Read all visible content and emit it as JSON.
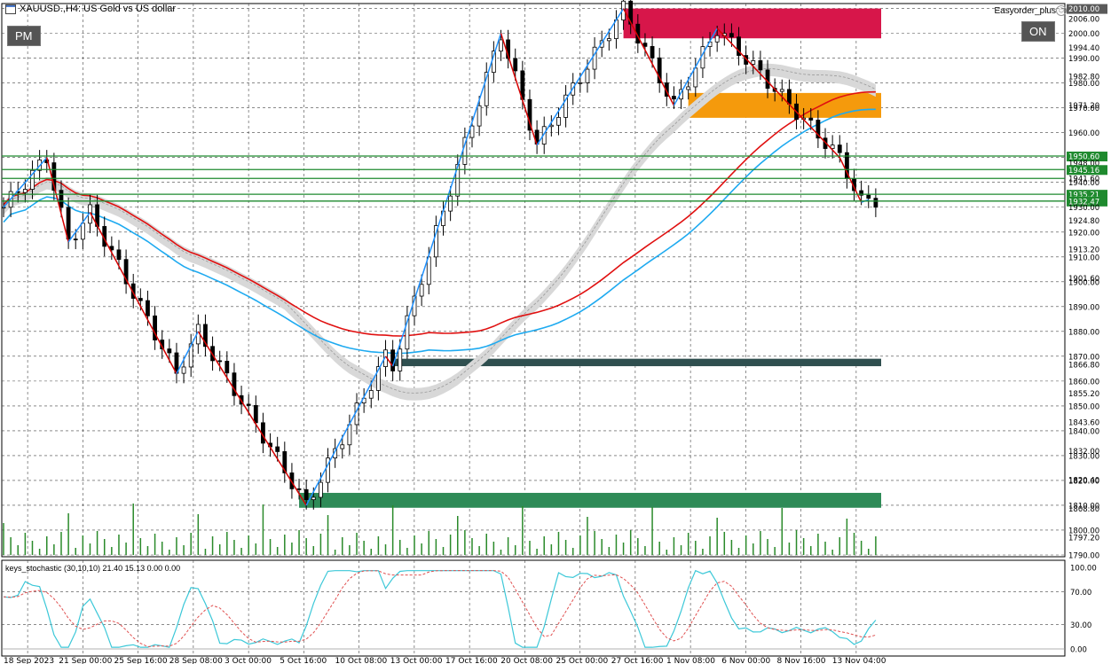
{
  "title": {
    "text": "XAUUSD.,H4:  US Gold vs US dollar"
  },
  "buttons": {
    "pm": "PM",
    "on": "ON"
  },
  "expert": {
    "name": "Easyorder_plus"
  },
  "indicator": {
    "label": "keys_stochastic (30,10,10) 21.40 15.13 0.00 0.00",
    "axis": [
      "100.00",
      "70.00",
      "30.00",
      "0.00"
    ]
  },
  "price_axis": [
    {
      "v": 2010.0,
      "t": "2010.00",
      "hl": "#5a5a5a"
    },
    {
      "v": 2006.0,
      "t": "2006.00"
    },
    {
      "v": 2000.0,
      "t": "2000.00"
    },
    {
      "v": 1994.4,
      "t": "1994.40"
    },
    {
      "v": 1990.0,
      "t": "1990.00"
    },
    {
      "v": 1982.8,
      "t": "1982.80"
    },
    {
      "v": 1980.0,
      "t": "1980.00"
    },
    {
      "v": 1971.2,
      "t": "1971.20"
    },
    {
      "v": 1970.0,
      "t": "1970.00"
    },
    {
      "v": 1960.0,
      "t": "1960.00"
    },
    {
      "v": 1950.6,
      "t": "1950.60",
      "hl": "#1e8a2e"
    },
    {
      "v": 1948.0,
      "t": "1948.00"
    },
    {
      "v": 1945.16,
      "t": "1945.16",
      "hl": "#1e8a2e"
    },
    {
      "v": 1941.6,
      "t": "1941.60"
    },
    {
      "v": 1940.0,
      "t": "1940.00"
    },
    {
      "v": 1935.21,
      "t": "1935.21",
      "hl": "#1e8a2e"
    },
    {
      "v": 1932.47,
      "t": "1932.47",
      "hl": "#1e8a2e"
    },
    {
      "v": 1930.0,
      "t": "1930.00"
    },
    {
      "v": 1924.8,
      "t": "1924.80"
    },
    {
      "v": 1920.0,
      "t": "1920.00"
    },
    {
      "v": 1913.2,
      "t": "1913.20"
    },
    {
      "v": 1910.0,
      "t": "1910.00"
    },
    {
      "v": 1901.6,
      "t": "1901.60"
    },
    {
      "v": 1900.0,
      "t": "1900.00"
    },
    {
      "v": 1890.0,
      "t": "1890.00"
    },
    {
      "v": 1880.0,
      "t": "1880.00"
    },
    {
      "v": 1870.0,
      "t": "1870.00"
    },
    {
      "v": 1866.8,
      "t": "1866.80"
    },
    {
      "v": 1860.0,
      "t": "1860.00"
    },
    {
      "v": 1855.2,
      "t": "1855.20"
    },
    {
      "v": 1850.0,
      "t": "1850.00"
    },
    {
      "v": 1843.6,
      "t": "1843.60"
    },
    {
      "v": 1840.0,
      "t": "1840.00"
    },
    {
      "v": 1832.0,
      "t": "1832.00"
    },
    {
      "v": 1830.0,
      "t": "1830.00"
    },
    {
      "v": 1820.0,
      "t": "1820.00"
    },
    {
      "v": 1820.4,
      "t": "1820.40"
    },
    {
      "v": 1810.0,
      "t": "1810.00"
    },
    {
      "v": 1808.8,
      "t": "1808.80"
    },
    {
      "v": 1800.0,
      "t": "1800.00"
    },
    {
      "v": 1797.2,
      "t": "1797.20"
    },
    {
      "v": 1790.0,
      "t": "1790.00"
    }
  ],
  "time_axis": [
    "18 Sep 2023",
    "21 Sep 00:00",
    "25 Sep 16:00",
    "28 Sep 08:00",
    "3 Oct 00:00",
    "5 Oct 16:00",
    "10 Oct 08:00",
    "13 Oct 00:00",
    "17 Oct 16:00",
    "20 Oct 08:00",
    "25 Oct 00:00",
    "27 Oct 16:00",
    "1 Nov 08:00",
    "6 Nov 00:00",
    "8 Nov 16:00",
    "13 Nov 04:00"
  ],
  "colors": {
    "zone_supply": "#d7164a",
    "zone_orange": "#f59a0c",
    "zone_demand_dark": "#2f4f4f",
    "zone_demand_green": "#2e8b57",
    "level_green": "#1e8a2e",
    "zigzag_up": "#1e90ff",
    "zigzag_down": "#d40000",
    "ma_cyan": "#1eaaf0",
    "ma_red": "#e01010",
    "stoch_main": "#3cc8d8",
    "stoch_signal": "#e05050"
  },
  "chart_data": {
    "type": "candlestick",
    "symbol": "XAUUSD.",
    "timeframe": "H4",
    "ylim": [
      1790,
      2012
    ],
    "zigzag": [
      {
        "x": 0,
        "y": 1930
      },
      {
        "x": 6,
        "y": 1950
      },
      {
        "x": 9,
        "y": 1916
      },
      {
        "x": 12,
        "y": 1928
      },
      {
        "x": 24,
        "y": 1863
      },
      {
        "x": 27,
        "y": 1880
      },
      {
        "x": 42,
        "y": 1810
      },
      {
        "x": 53,
        "y": 1870
      },
      {
        "x": 54,
        "y": 1866
      },
      {
        "x": 69,
        "y": 2000
      },
      {
        "x": 74,
        "y": 1955
      },
      {
        "x": 86,
        "y": 2010
      },
      {
        "x": 93,
        "y": 1971
      },
      {
        "x": 99,
        "y": 2002
      },
      {
        "x": 116,
        "y": 1950
      },
      {
        "x": 119,
        "y": 1932
      },
      {
        "x": 120,
        "y": 1933
      }
    ],
    "levels": [
      1950.6,
      1945.16,
      1941.6,
      1935.21,
      1932.47
    ],
    "zones": [
      {
        "name": "supply-zone",
        "top": 2010,
        "bottom": 1998,
        "from_x": 86
      },
      {
        "name": "orange-zone",
        "top": 1976,
        "bottom": 1966,
        "from_x": 95
      },
      {
        "name": "demand-zone-dark",
        "top": 1869,
        "bottom": 1866,
        "from_x": 54
      },
      {
        "name": "demand-zone-green",
        "top": 1815,
        "bottom": 1809,
        "from_x": 41
      }
    ],
    "stochastic": {
      "main_last": 21.4,
      "signal_last": 15.13
    }
  }
}
